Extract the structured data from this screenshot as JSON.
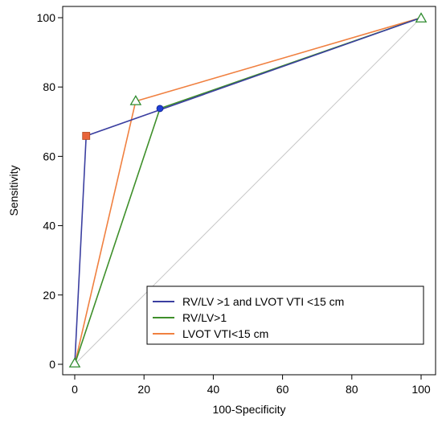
{
  "chart_data": {
    "type": "line",
    "xlabel": "100-Specificity",
    "ylabel": "Sensitivity",
    "xlim": [
      0,
      100
    ],
    "ylim": [
      0,
      100
    ],
    "xticks": [
      0,
      20,
      40,
      60,
      80,
      100
    ],
    "yticks": [
      0,
      20,
      40,
      60,
      80,
      100
    ],
    "grid": false,
    "reference_line": {
      "x": [
        0,
        100
      ],
      "y": [
        0,
        100
      ],
      "color": "#c8c8c8"
    },
    "legend_position": "bottom-right",
    "series": [
      {
        "name": "RV/LV >1 and LVOT VTI <15 cm",
        "color": "#3b3fa0",
        "marker": "square",
        "marker_color": "#e8643a",
        "marker_point": [
          3.3,
          65.9
        ],
        "x": [
          0,
          3.3,
          100
        ],
        "y": [
          0,
          65.9,
          100
        ]
      },
      {
        "name": "RV/LV>1",
        "color": "#3e8f2a",
        "marker": "circle",
        "marker_color": "#1f3fd6",
        "marker_point": [
          24.6,
          73.8
        ],
        "x": [
          0,
          24.6,
          100
        ],
        "y": [
          0,
          73.8,
          100
        ]
      },
      {
        "name": "LVOT VTI<15 cm",
        "color": "#f08040",
        "marker": "triangle",
        "marker_color": "#2e8b2e",
        "marker_point": [
          17.6,
          75.9
        ],
        "x": [
          0,
          17.6,
          100
        ],
        "y": [
          0,
          75.9,
          100
        ]
      }
    ]
  }
}
